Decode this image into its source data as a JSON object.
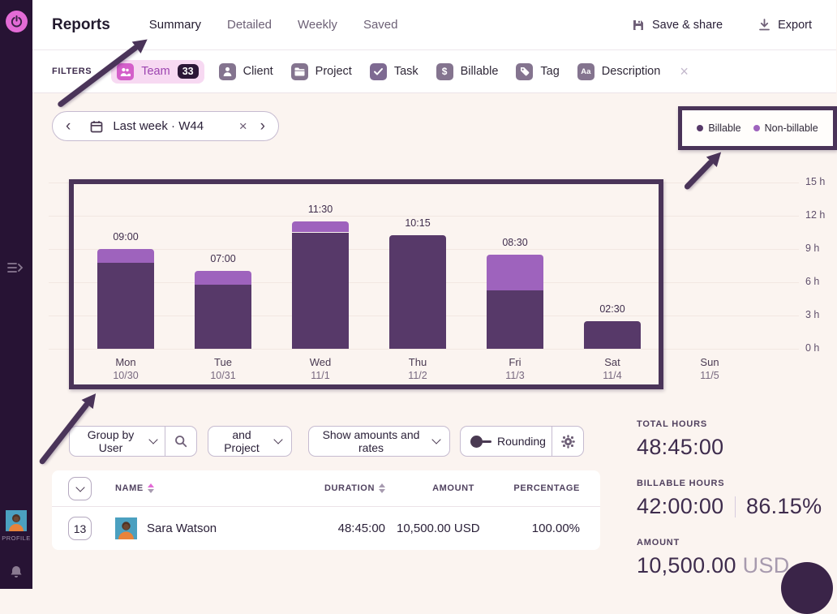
{
  "sidebar": {
    "profile_label": "PROFILE"
  },
  "header": {
    "title": "Reports",
    "tabs": [
      {
        "label": "Summary",
        "active": true
      },
      {
        "label": "Detailed",
        "active": false
      },
      {
        "label": "Weekly",
        "active": false
      },
      {
        "label": "Saved",
        "active": false
      }
    ],
    "actions": {
      "save": "Save & share",
      "export": "Export"
    }
  },
  "filters": {
    "label": "FILTERS",
    "items": [
      {
        "label": "Team",
        "badge": "33",
        "icon": "team-icon",
        "active": true
      },
      {
        "label": "Client",
        "icon": "client-icon"
      },
      {
        "label": "Project",
        "icon": "project-icon"
      },
      {
        "label": "Task",
        "icon": "task-icon"
      },
      {
        "label": "Billable",
        "icon": "billable-icon"
      },
      {
        "label": "Tag",
        "icon": "tag-icon"
      },
      {
        "label": "Description",
        "icon": "description-icon"
      }
    ]
  },
  "icons": {
    "close": "×",
    "prev": "‹",
    "next": "›",
    "billable_dollar": "$",
    "description_aa": "Aa"
  },
  "datepicker": {
    "label": "Last week · W44"
  },
  "chart_data": {
    "type": "stacked-bar",
    "title": "",
    "categories": [
      "Mon",
      "Tue",
      "Wed",
      "Thu",
      "Fri",
      "Sat",
      "Sun"
    ],
    "dates": [
      "10/30",
      "10/31",
      "11/1",
      "11/2",
      "11/3",
      "11/4",
      "11/5"
    ],
    "totals_label": [
      "09:00",
      "07:00",
      "11:30",
      "10:15",
      "08:30",
      "02:30",
      ""
    ],
    "series": [
      {
        "name": "Billable",
        "color": "#573969",
        "values": [
          7.75,
          5.75,
          10.5,
          10.25,
          5.25,
          2.5,
          0
        ]
      },
      {
        "name": "Non-billable",
        "color": "#9e63bd",
        "values": [
          1.25,
          1.25,
          1.0,
          0,
          3.25,
          0,
          0
        ]
      }
    ],
    "ylabel": "hours",
    "ylim": [
      0,
      15
    ],
    "ytick_step": 3,
    "ytick_suffix": " h",
    "grid": true,
    "legend_position": "top-right"
  },
  "controls": {
    "group_by": "Group by User",
    "and_group": "and Project",
    "show": "Show amounts and rates",
    "rounding": "Rounding"
  },
  "table": {
    "columns": [
      "NAME",
      "DURATION",
      "AMOUNT",
      "PERCENTAGE"
    ],
    "rows": [
      {
        "count": "13",
        "name": "Sara Watson",
        "duration": "48:45:00",
        "amount": "10,500.00 USD",
        "percentage": "100.00%"
      }
    ]
  },
  "summary": {
    "total_hours_label": "TOTAL HOURS",
    "total_hours": "48:45:00",
    "billable_label": "BILLABLE HOURS",
    "billable_hours": "42:00:00",
    "billable_percent": "86.15%",
    "amount_label": "AMOUNT",
    "amount": "10,500.00",
    "currency": "USD"
  },
  "colors": {
    "billable": "#573969",
    "non_billable": "#9e63bd",
    "annotation": "#4a3459",
    "accent_pink": "#e36bd6",
    "sidebar_bg": "#271334",
    "page_bg": "#fbf4f0"
  }
}
